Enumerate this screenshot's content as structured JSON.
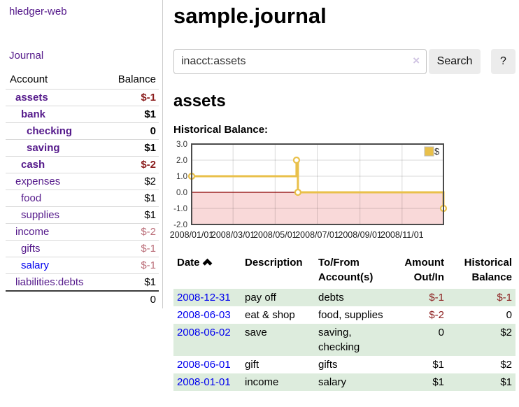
{
  "colors": {
    "link_visited_purple": "#551a8b",
    "link_blue": "#0000ee",
    "negative_red": "#8b1d1d",
    "negative_muted_red": "#bb6e79",
    "row_stripe_green": "#ddecdd",
    "button_gray": "#ececec",
    "chart_line_gold": "#e9c04a",
    "chart_negative_fill_pink": "#f9d9d9",
    "chart_zero_line_dark_red": "#8b0000"
  },
  "sidebar": {
    "brand": "hledger-web",
    "nav_journal": "Journal",
    "accounts": {
      "header": {
        "account": "Account",
        "balance": "Balance"
      },
      "rows": [
        {
          "name": "assets",
          "balance": "$-1",
          "depth": 1,
          "bold": true,
          "neg": true
        },
        {
          "name": "bank",
          "balance": "$1",
          "depth": 2,
          "bold": true
        },
        {
          "name": "checking",
          "balance": "0",
          "depth": 3,
          "bold": true
        },
        {
          "name": "saving",
          "balance": "$1",
          "depth": 3,
          "bold": true
        },
        {
          "name": "cash",
          "balance": "$-2",
          "depth": 2,
          "bold": true,
          "neg": true
        },
        {
          "name": "expenses",
          "balance": "$2",
          "depth": 1
        },
        {
          "name": "food",
          "balance": "$1",
          "depth": 2
        },
        {
          "name": "supplies",
          "balance": "$1",
          "depth": 2
        },
        {
          "name": "income",
          "balance": "$-2",
          "depth": 1,
          "muted": true
        },
        {
          "name": "gifts",
          "balance": "$-1",
          "depth": 2,
          "muted": true
        },
        {
          "name": "salary",
          "balance": "$-1",
          "depth": 2,
          "muted": true,
          "blue": true
        },
        {
          "name": "liabilities:debts",
          "balance": "$1",
          "depth": 1
        }
      ],
      "total": "0"
    }
  },
  "main": {
    "title": "sample.journal",
    "search": {
      "value": "inacct:assets",
      "clear_icon": "×",
      "search_label": "Search",
      "help_label": "?"
    },
    "account_heading": "assets",
    "chart_title": "Historical Balance:"
  },
  "chart_data": {
    "type": "line",
    "step": true,
    "title": "Historical Balance",
    "series": [
      {
        "name": "$",
        "color": "#e9c04a",
        "points": [
          [
            "2008-01-01",
            1
          ],
          [
            "2008-06-01",
            2
          ],
          [
            "2008-06-03",
            0
          ],
          [
            "2008-12-31",
            -1
          ]
        ]
      }
    ],
    "x_range": [
      "2008-01-01",
      "2008-12-31"
    ],
    "x_ticks": [
      "2008/01/01",
      "2008/03/01",
      "2008/05/01",
      "2008/07/01",
      "2008/09/01",
      "2008/11/01"
    ],
    "y_ticks": [
      "3.0",
      "2.0",
      "1.0",
      "0.0",
      "-1.0",
      "-2.0"
    ],
    "ylim": [
      -2,
      3
    ],
    "grid": true,
    "legend": {
      "label": "$",
      "position": "top-right"
    },
    "negative_region_fill": "#f9d9d9",
    "zero_line_color": "#8b0000"
  },
  "register": {
    "headers": {
      "date": "Date",
      "description": "Description",
      "accounts": "To/From Account(s)",
      "amount": "Amount Out/In",
      "balance": "Historical Balance"
    },
    "sort": {
      "column": "date",
      "icon": "chevron-up"
    },
    "rows": [
      {
        "date": "2008-12-31",
        "description": "pay off",
        "accounts": "debts",
        "amount": "$-1",
        "balance": "$-1"
      },
      {
        "date": "2008-06-03",
        "description": "eat & shop",
        "accounts": "food, supplies",
        "amount": "$-2",
        "balance": "0"
      },
      {
        "date": "2008-06-02",
        "description": "save",
        "accounts": "saving, checking",
        "amount": "0",
        "balance": "$2"
      },
      {
        "date": "2008-06-01",
        "description": "gift",
        "accounts": "gifts",
        "amount": "$1",
        "balance": "$2"
      },
      {
        "date": "2008-01-01",
        "description": "income",
        "accounts": "salary",
        "amount": "$1",
        "balance": "$1"
      }
    ]
  }
}
